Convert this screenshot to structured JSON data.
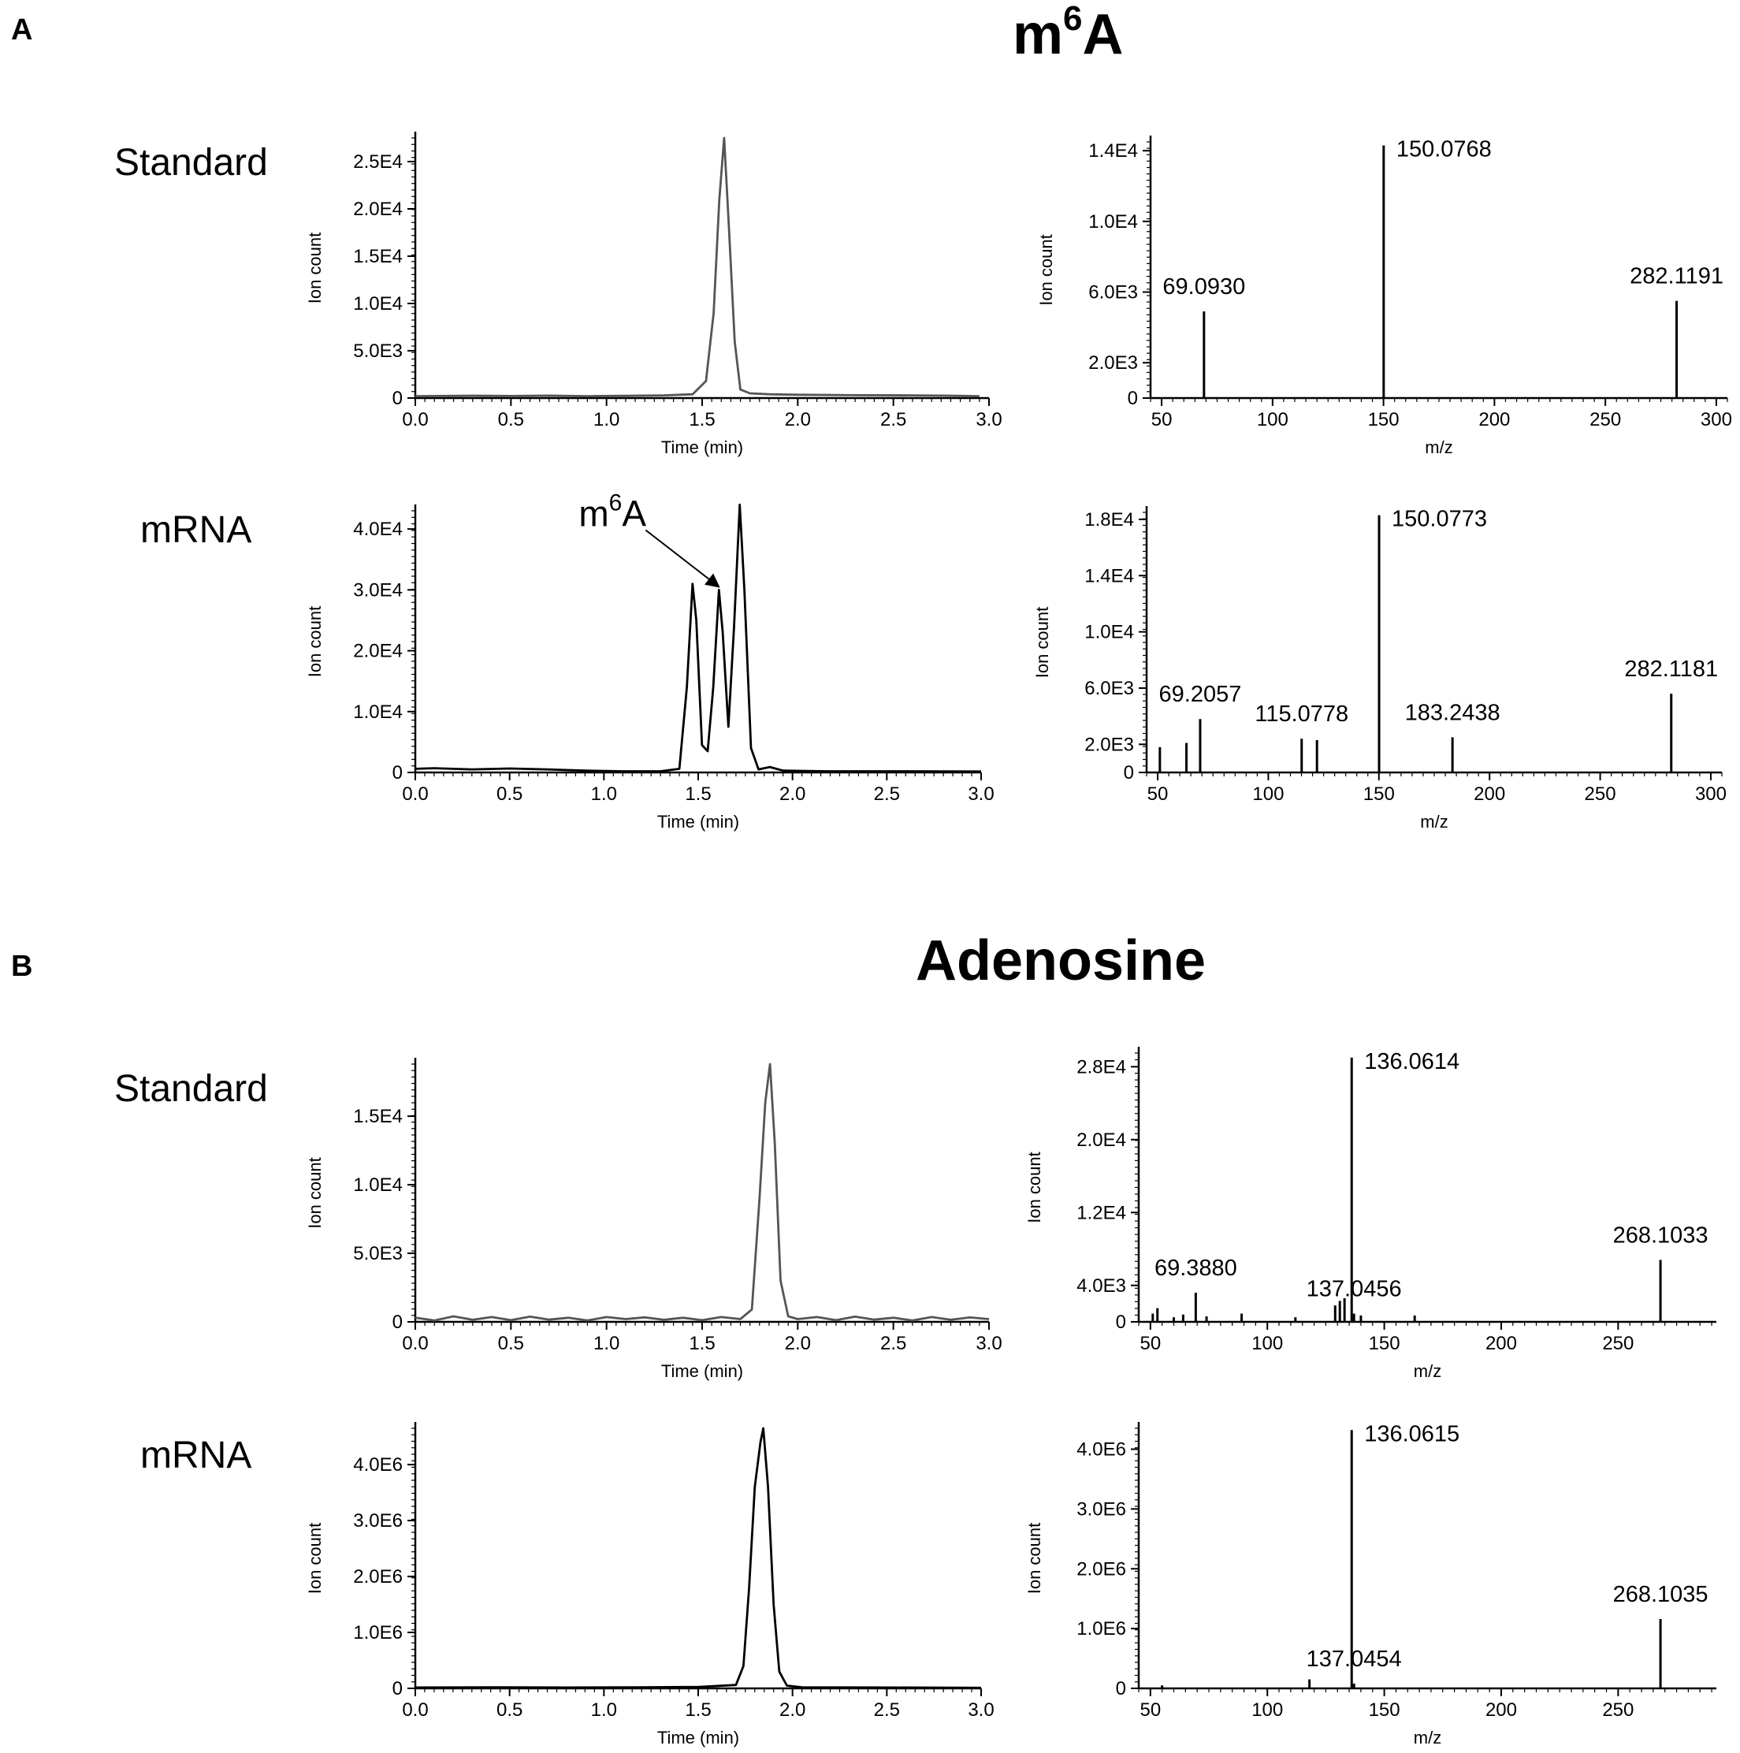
{
  "figure": {
    "panels": [
      {
        "letter": "A",
        "title_main": "m",
        "title_sup": "6",
        "title_tail": "A",
        "rows": [
          {
            "label": "Standard"
          },
          {
            "label": "mRNA"
          }
        ]
      },
      {
        "letter": "B",
        "title_main": "Adenosine",
        "title_sup": "",
        "title_tail": "",
        "rows": [
          {
            "label": "Standard"
          },
          {
            "label": "mRNA"
          }
        ]
      }
    ]
  },
  "chart_data": [
    {
      "id": "A-std-chrom",
      "type": "line",
      "panel": "A",
      "row": "Standard",
      "xlabel": "Time (min)",
      "ylabel": "Ion count",
      "xlim": [
        0,
        3.0
      ],
      "ylim": [
        0,
        27500.0
      ],
      "xticks": [
        0,
        0.5,
        1.0,
        1.5,
        2.0,
        2.5,
        3.0
      ],
      "xtick_labels": [
        "0.0",
        "0.5",
        "1.0",
        "1.5",
        "2.0",
        "2.5",
        "3.0"
      ],
      "yticks": [
        0,
        5000,
        10000,
        15000,
        20000,
        25000
      ],
      "ytick_labels": [
        "0",
        "5.0E3",
        "1.0E4",
        "1.5E4",
        "2.0E4",
        "2.5E4"
      ],
      "line_color": "#555555",
      "x": [
        0,
        0.3,
        0.5,
        0.7,
        0.9,
        1.1,
        1.3,
        1.45,
        1.52,
        1.56,
        1.59,
        1.615,
        1.64,
        1.67,
        1.7,
        1.75,
        1.85,
        2.0,
        2.3,
        2.6,
        2.8,
        2.95
      ],
      "y": [
        200,
        250,
        220,
        260,
        200,
        240,
        280,
        400,
        1800,
        9000,
        21000,
        27500,
        18000,
        6000,
        900,
        500,
        400,
        350,
        300,
        280,
        250,
        200
      ]
    },
    {
      "id": "A-std-ms",
      "type": "stem",
      "panel": "A",
      "row": "Standard",
      "xlabel": "m/z",
      "ylabel": "Ion count",
      "xlim": [
        45,
        305
      ],
      "ylim": [
        0,
        14500.0
      ],
      "xticks": [
        50,
        100,
        150,
        200,
        250,
        300
      ],
      "xtick_labels": [
        "50",
        "100",
        "150",
        "200",
        "250",
        "300"
      ],
      "yticks": [
        0,
        2000,
        6000,
        10000,
        14000
      ],
      "ytick_labels": [
        "0",
        "2.0E3",
        "6.0E3",
        "1.0E4",
        "1.4E4"
      ],
      "x": [
        69.093,
        150.0768,
        282.1191
      ],
      "values": [
        4900,
        14300,
        5500
      ],
      "peak_labels": [
        "69.0930",
        "150.0768",
        "282.1191"
      ]
    },
    {
      "id": "A-mrna-chrom",
      "type": "line",
      "panel": "A",
      "row": "mRNA",
      "xlabel": "Time (min)",
      "ylabel": "Ion count",
      "xlim": [
        0,
        3.0
      ],
      "ylim": [
        0,
        43000.0
      ],
      "xticks": [
        0,
        0.5,
        1.0,
        1.5,
        2.0,
        2.5,
        3.0
      ],
      "xtick_labels": [
        "0.0",
        "0.5",
        "1.0",
        "1.5",
        "2.0",
        "2.5",
        "3.0"
      ],
      "yticks": [
        0,
        10000,
        20000,
        30000,
        40000
      ],
      "ytick_labels": [
        "0",
        "1.0E4",
        "2.0E4",
        "3.0E4",
        "4.0E4"
      ],
      "line_color": "#000000",
      "x": [
        0,
        0.1,
        0.3,
        0.5,
        0.7,
        0.9,
        1.1,
        1.3,
        1.4,
        1.44,
        1.47,
        1.49,
        1.52,
        1.55,
        1.58,
        1.61,
        1.63,
        1.66,
        1.69,
        1.72,
        1.745,
        1.78,
        1.82,
        1.88,
        1.95,
        2.2,
        2.6,
        3.0
      ],
      "y": [
        600,
        700,
        500,
        650,
        500,
        300,
        200,
        200,
        600,
        14000,
        31000,
        25000,
        4500,
        3500,
        14000,
        30000,
        23000,
        7500,
        24000,
        44000,
        30000,
        4000,
        500,
        900,
        300,
        200,
        200,
        150
      ],
      "annotation": {
        "text_main": "m",
        "text_sup": "6",
        "text_tail": "A",
        "target_x": 1.61,
        "target_y": 30500
      }
    },
    {
      "id": "A-mrna-ms",
      "type": "stem",
      "panel": "A",
      "row": "mRNA",
      "xlabel": "m/z",
      "ylabel": "Ion count",
      "xlim": [
        45,
        305
      ],
      "ylim": [
        0,
        18500.0
      ],
      "xticks": [
        50,
        100,
        150,
        200,
        250,
        300
      ],
      "xtick_labels": [
        "50",
        "100",
        "150",
        "200",
        "250",
        "300"
      ],
      "yticks": [
        0,
        2000,
        6000,
        10000,
        14000,
        18000
      ],
      "ytick_labels": [
        "0",
        "2.0E3",
        "6.0E3",
        "1.0E4",
        "1.4E4",
        "1.8E4"
      ],
      "x": [
        51,
        63,
        69.2057,
        115.0778,
        122,
        150.0773,
        183.2438,
        282.1181
      ],
      "values": [
        1800,
        2100,
        3800,
        2400,
        2300,
        18300,
        2500,
        5600
      ],
      "peak_labels": [
        "",
        "",
        "69.2057",
        "115.0778",
        "",
        "150.0773",
        "183.2438",
        "282.1181"
      ]
    },
    {
      "id": "B-std-chrom",
      "type": "line",
      "panel": "B",
      "row": "Standard",
      "xlabel": "Time (min)",
      "ylabel": "Ion count",
      "xlim": [
        0,
        3.0
      ],
      "ylim": [
        0,
        18800.0
      ],
      "xticks": [
        0,
        0.5,
        1.0,
        1.5,
        2.0,
        2.5,
        3.0
      ],
      "xtick_labels": [
        "0.0",
        "0.5",
        "1.0",
        "1.5",
        "2.0",
        "2.5",
        "3.0"
      ],
      "yticks": [
        0,
        5000,
        10000,
        15000
      ],
      "ytick_labels": [
        "0",
        "5.0E3",
        "1.0E4",
        "1.5E4"
      ],
      "line_color": "#555555",
      "x": [
        0,
        0.1,
        0.2,
        0.3,
        0.4,
        0.5,
        0.6,
        0.7,
        0.8,
        0.9,
        1.0,
        1.1,
        1.2,
        1.3,
        1.4,
        1.5,
        1.6,
        1.7,
        1.76,
        1.8,
        1.83,
        1.855,
        1.88,
        1.91,
        1.95,
        2.0,
        2.1,
        2.2,
        2.3,
        2.4,
        2.5,
        2.6,
        2.7,
        2.8,
        2.9,
        3.0
      ],
      "y": [
        300,
        100,
        400,
        150,
        350,
        120,
        380,
        160,
        300,
        100,
        350,
        200,
        330,
        150,
        300,
        120,
        350,
        200,
        900,
        9000,
        16000,
        18800,
        13000,
        3000,
        400,
        200,
        350,
        120,
        380,
        160,
        300,
        100,
        350,
        150,
        320,
        200
      ]
    },
    {
      "id": "B-std-ms",
      "type": "stem",
      "panel": "B",
      "row": "Standard",
      "xlabel": "m/z",
      "ylabel": "Ion count",
      "xlim": [
        45,
        292
      ],
      "ylim": [
        0,
        29500.0
      ],
      "xticks": [
        50,
        100,
        150,
        200,
        250
      ],
      "xtick_labels": [
        "50",
        "100",
        "150",
        "200",
        "250"
      ],
      "yticks": [
        0,
        4000,
        12000,
        20000,
        28000
      ],
      "ytick_labels": [
        "0",
        "4.0E3",
        "1.2E4",
        "2.0E4",
        "2.8E4"
      ],
      "x": [
        51,
        53,
        60,
        64,
        69.388,
        74,
        89,
        112,
        129,
        131,
        133,
        136.0614,
        137.0456,
        140,
        163,
        268.1033
      ],
      "values": [
        900,
        1500,
        500,
        800,
        3200,
        600,
        900,
        500,
        1800,
        2300,
        2600,
        29000,
        900,
        700,
        700,
        6800
      ],
      "peak_labels": [
        "",
        "",
        "",
        "",
        "69.3880",
        "",
        "",
        "",
        "",
        "",
        "",
        "136.0614",
        "137.0456",
        "",
        "",
        "268.1033"
      ]
    },
    {
      "id": "B-mrna-chrom",
      "type": "line",
      "panel": "B",
      "row": "mRNA",
      "xlabel": "Time (min)",
      "ylabel": "Ion count",
      "xlim": [
        0,
        3.0
      ],
      "ylim": [
        0,
        4650000.0
      ],
      "xticks": [
        0,
        0.5,
        1.0,
        1.5,
        2.0,
        2.5,
        3.0
      ],
      "xtick_labels": [
        "0.0",
        "0.5",
        "1.0",
        "1.5",
        "2.0",
        "2.5",
        "3.0"
      ],
      "yticks": [
        0,
        1000000,
        2000000,
        3000000,
        4000000
      ],
      "ytick_labels": [
        "0",
        "1.0E6",
        "2.0E6",
        "3.0E6",
        "4.0E6"
      ],
      "line_color": "#000000",
      "x": [
        0,
        0.4,
        0.8,
        1.2,
        1.5,
        1.7,
        1.74,
        1.77,
        1.8,
        1.83,
        1.845,
        1.87,
        1.9,
        1.93,
        1.97,
        2.05,
        2.5,
        3.0
      ],
      "y": [
        15000,
        20000,
        15000,
        20000,
        25000,
        60000,
        400000,
        1800000,
        3600000,
        4400000,
        4650000,
        3600000,
        1500000,
        300000,
        50000,
        20000,
        15000,
        10000
      ]
    },
    {
      "id": "B-mrna-ms",
      "type": "stem",
      "panel": "B",
      "row": "mRNA",
      "xlabel": "m/z",
      "ylabel": "Ion count",
      "xlim": [
        45,
        292
      ],
      "ylim": [
        0,
        4350000.0
      ],
      "xticks": [
        50,
        100,
        150,
        200,
        250
      ],
      "xtick_labels": [
        "50",
        "100",
        "150",
        "200",
        "250"
      ],
      "yticks": [
        0,
        1000000,
        2000000,
        3000000,
        4000000
      ],
      "ytick_labels": [
        "0",
        "1.0E6",
        "2.0E6",
        "3.0E6",
        "4.0E6"
      ],
      "x": [
        55,
        118,
        136.0615,
        137.0454,
        268.1035
      ],
      "values": [
        50000,
        150000,
        4320000,
        80000,
        1160000
      ],
      "peak_labels": [
        "",
        "",
        "136.0615",
        "137.0454",
        "268.1035"
      ]
    }
  ]
}
